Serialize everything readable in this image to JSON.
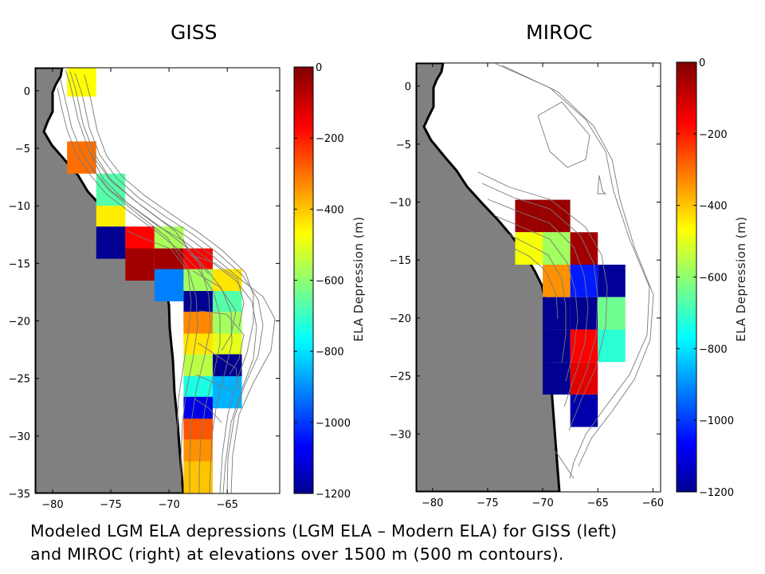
{
  "panels": [
    {
      "title": "GISS"
    },
    {
      "title": "MIROC"
    }
  ],
  "caption": {
    "line1": "Modeled LGM ELA depressions (LGM ELA – Modern ELA) for GISS (left)",
    "line2": "and MIROC (right) at elevations over 1500 m (500 m contours)."
  },
  "chart_data": [
    {
      "type": "heatmap",
      "title": "GISS",
      "xlim": [
        -81.5,
        -60.5
      ],
      "ylim": [
        -35,
        2
      ],
      "x_ticks": [
        -80,
        -75,
        -70,
        -65
      ],
      "y_ticks": [
        0,
        -5,
        -10,
        -15,
        -20,
        -25,
        -30,
        -35
      ],
      "cell_size_deg": {
        "dlon": 2.5,
        "dlat": 2.8
      },
      "colorbar": {
        "label": "ELA Depression (m)",
        "ticks": [
          0,
          -200,
          -400,
          -600,
          -800,
          -1000,
          -1200
        ],
        "range": [
          -1200,
          0
        ]
      },
      "cells": [
        {
          "lon": -77.5,
          "lat": 0.9,
          "value": -450
        },
        {
          "lon": -77.5,
          "lat": -5.8,
          "value": -280
        },
        {
          "lon": -75.0,
          "lat": -8.6,
          "value": -650
        },
        {
          "lon": -75.0,
          "lat": -11.4,
          "value": -430
        },
        {
          "lon": -75.0,
          "lat": -13.2,
          "value": -1180
        },
        {
          "lon": -72.5,
          "lat": -13.2,
          "value": -150
        },
        {
          "lon": -70.0,
          "lat": -13.2,
          "value": -550
        },
        {
          "lon": -72.5,
          "lat": -15.1,
          "value": -40
        },
        {
          "lon": -70.0,
          "lat": -15.1,
          "value": -40
        },
        {
          "lon": -67.5,
          "lat": -15.1,
          "value": -150
        },
        {
          "lon": -70.0,
          "lat": -16.9,
          "value": -900
        },
        {
          "lon": -67.5,
          "lat": -16.9,
          "value": -560
        },
        {
          "lon": -65.0,
          "lat": -16.9,
          "value": -420
        },
        {
          "lon": -67.5,
          "lat": -18.8,
          "value": -1180
        },
        {
          "lon": -65.0,
          "lat": -18.8,
          "value": -650
        },
        {
          "lon": -67.5,
          "lat": -20.6,
          "value": -310
        },
        {
          "lon": -65.0,
          "lat": -20.6,
          "value": -560
        },
        {
          "lon": -67.5,
          "lat": -22.5,
          "value": -420
        },
        {
          "lon": -65.0,
          "lat": -22.5,
          "value": -480
        },
        {
          "lon": -67.5,
          "lat": -24.3,
          "value": -530
        },
        {
          "lon": -65.0,
          "lat": -24.3,
          "value": -1180
        },
        {
          "lon": -67.5,
          "lat": -26.2,
          "value": -720
        },
        {
          "lon": -65.0,
          "lat": -26.2,
          "value": -840
        },
        {
          "lon": -67.5,
          "lat": -28.0,
          "value": -1080
        },
        {
          "lon": -67.5,
          "lat": -29.9,
          "value": -250
        },
        {
          "lon": -67.5,
          "lat": -31.7,
          "value": -320
        },
        {
          "lon": -67.5,
          "lat": -33.6,
          "value": -380
        }
      ]
    },
    {
      "type": "heatmap",
      "title": "MIROC",
      "xlim": [
        -81.5,
        -59.3
      ],
      "ylim": [
        -35,
        2
      ],
      "x_ticks": [
        -80,
        -75,
        -70,
        -65,
        -60
      ],
      "y_ticks": [
        0,
        -5,
        -10,
        -15,
        -20,
        -25,
        -30
      ],
      "cell_size_deg": {
        "dlon": 2.5,
        "dlat": 2.8
      },
      "colorbar": {
        "label": "ELA Depression (m)",
        "ticks": [
          0,
          -200,
          -400,
          -600,
          -800,
          -1000,
          -1200
        ],
        "range": [
          -1200,
          0
        ]
      },
      "cells": [
        {
          "lon": -71.25,
          "lat": -11.2,
          "value": -30
        },
        {
          "lon": -68.75,
          "lat": -11.2,
          "value": -30
        },
        {
          "lon": -71.25,
          "lat": -14.0,
          "value": -460
        },
        {
          "lon": -68.75,
          "lat": -14.0,
          "value": -560
        },
        {
          "lon": -66.25,
          "lat": -14.0,
          "value": -40
        },
        {
          "lon": -68.75,
          "lat": -16.8,
          "value": -320
        },
        {
          "lon": -66.25,
          "lat": -16.8,
          "value": -1020
        },
        {
          "lon": -63.75,
          "lat": -16.8,
          "value": -1170
        },
        {
          "lon": -68.75,
          "lat": -19.6,
          "value": -1180
        },
        {
          "lon": -66.25,
          "lat": -19.6,
          "value": -1180
        },
        {
          "lon": -63.75,
          "lat": -19.6,
          "value": -620
        },
        {
          "lon": -68.75,
          "lat": -22.4,
          "value": -1180
        },
        {
          "lon": -66.25,
          "lat": -22.4,
          "value": -150
        },
        {
          "lon": -63.75,
          "lat": -22.4,
          "value": -700
        },
        {
          "lon": -68.75,
          "lat": -25.2,
          "value": -1180
        },
        {
          "lon": -66.25,
          "lat": -25.2,
          "value": -120
        },
        {
          "lon": -66.25,
          "lat": -28.0,
          "value": -1150
        }
      ]
    }
  ]
}
